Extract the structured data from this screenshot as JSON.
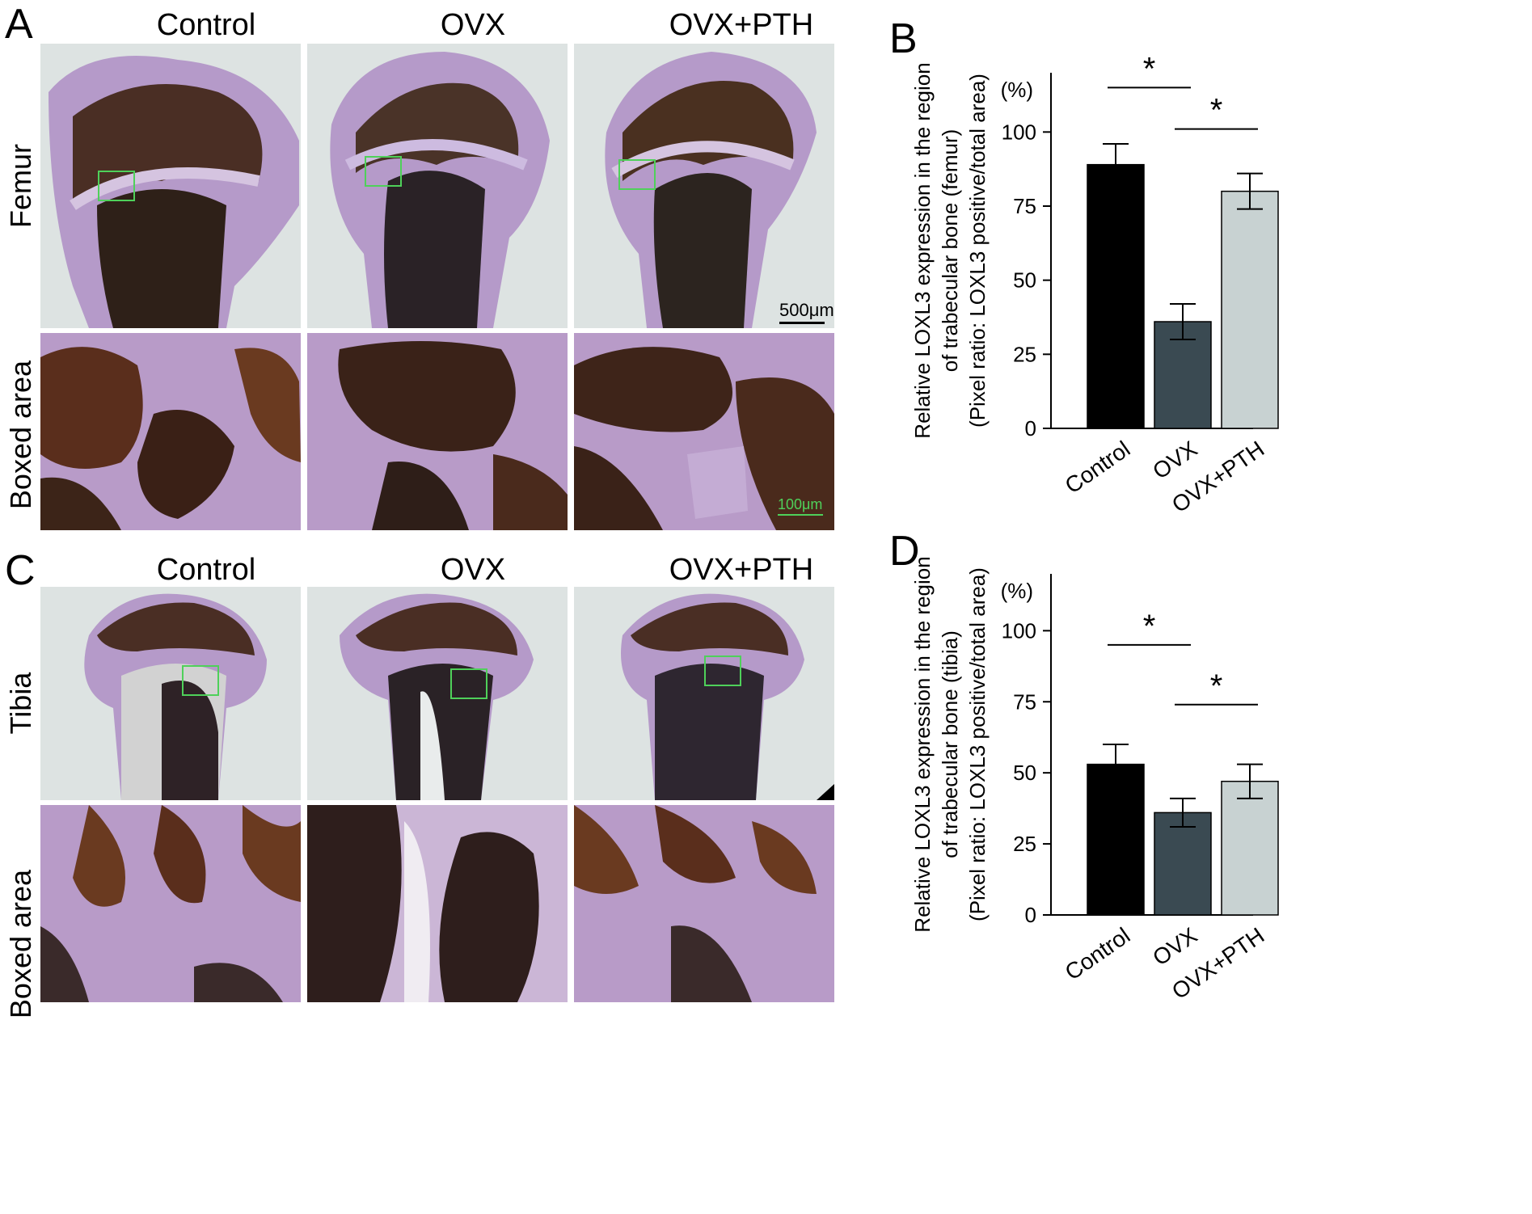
{
  "panels": {
    "A": {
      "letter": "A",
      "cols": [
        "Control",
        "OVX",
        "OVX+PTH"
      ],
      "rows": [
        "Femur",
        "Boxed area"
      ],
      "scale_top": "500μm",
      "scale_bottom": "100μm"
    },
    "C": {
      "letter": "C",
      "cols": [
        "Control",
        "OVX",
        "OVX+PTH"
      ],
      "rows": [
        "Tibia",
        "Boxed area"
      ]
    }
  },
  "colors": {
    "control": "#000000",
    "ovx": "#3a4a52",
    "ovx_pth": "#c8d2d2",
    "bg_tissue": "#dfe4e3",
    "stain_dark": "#3a2418",
    "stain_purple": "#a68ac4",
    "box": "#4fd05a"
  },
  "chart_data": [
    {
      "panel_letter": "B",
      "type": "bar",
      "categories": [
        "Control",
        "OVX",
        "OVX+PTH"
      ],
      "values": [
        89,
        36,
        80
      ],
      "errors": [
        7,
        6,
        6
      ],
      "unit_label": "(%)",
      "ylabel_lines": [
        "Relative LOXL3 expression in the region",
        "of trabecular bone (femur)",
        "(Pixel ratio: LOXL3 positive/total area)"
      ],
      "yticks": [
        0,
        25,
        50,
        75,
        100
      ],
      "ylim": [
        0,
        120
      ],
      "significance": [
        {
          "from": 0,
          "to": 1,
          "label": "*",
          "level": 115
        },
        {
          "from": 1,
          "to": 2,
          "label": "*",
          "level": 101
        }
      ]
    },
    {
      "panel_letter": "D",
      "type": "bar",
      "categories": [
        "Control",
        "OVX",
        "OVX+PTH"
      ],
      "values": [
        53,
        36,
        47
      ],
      "errors": [
        7,
        5,
        6
      ],
      "unit_label": "(%)",
      "ylabel_lines": [
        "Relative LOXL3 expression in the region",
        "of trabecular bone (tibia)",
        "(Pixel ratio: LOXL3 positive/total area)"
      ],
      "yticks": [
        0,
        25,
        50,
        75,
        100
      ],
      "ylim": [
        0,
        120
      ],
      "significance": [
        {
          "from": 0,
          "to": 1,
          "label": "*",
          "level": 95
        },
        {
          "from": 1,
          "to": 2,
          "label": "*",
          "level": 74
        }
      ]
    }
  ]
}
